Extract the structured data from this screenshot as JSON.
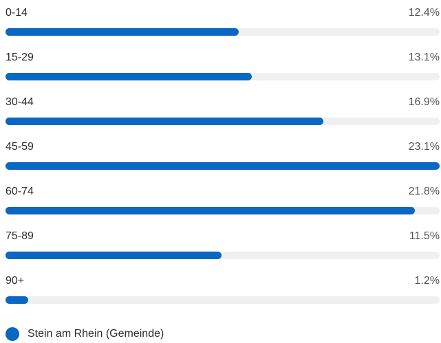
{
  "chart_data": {
    "type": "bar",
    "orientation": "horizontal",
    "categories": [
      "0-14",
      "15-29",
      "30-44",
      "45-59",
      "60-74",
      "75-89",
      "90+"
    ],
    "value_labels": [
      "12.4%",
      "13.1%",
      "16.9%",
      "23.1%",
      "21.8%",
      "11.5%",
      "1.2%"
    ],
    "series": [
      {
        "name": "Stein am Rhein (Gemeinde)",
        "values": [
          12.4,
          13.1,
          16.9,
          23.1,
          21.8,
          11.5,
          1.2
        ],
        "color": "#0a67c2"
      }
    ],
    "xlim": [
      0,
      23.1
    ],
    "unit": "%",
    "track_color": "#f0f0f0",
    "grid": false,
    "legend_position": "bottom-left"
  }
}
